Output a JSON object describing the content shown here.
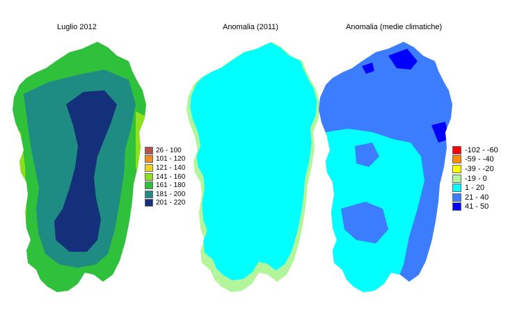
{
  "panels": [
    {
      "title": "Luglio 2012",
      "legend": [
        {
          "label": "26 - 100",
          "color": "#b9514a"
        },
        {
          "label": "101 - 120",
          "color": "#f28d22"
        },
        {
          "label": "121 - 140",
          "color": "#f0d21c"
        },
        {
          "label": "141 - 160",
          "color": "#8ee11a"
        },
        {
          "label": "161 - 180",
          "color": "#2fc03c"
        },
        {
          "label": "181 - 200",
          "color": "#1e8c82"
        },
        {
          "label": "201 - 220",
          "color": "#14307a"
        }
      ]
    },
    {
      "title": "Anomalia (2011)",
      "legend": []
    },
    {
      "title": "Anomalia (medie climatiche)",
      "legend": [
        {
          "label": "-102 - -60",
          "color": "#ff0000"
        },
        {
          "label": "-59 - -40",
          "color": "#ff8c00"
        },
        {
          "label": "-39 - -20",
          "color": "#ffff00"
        },
        {
          "label": "-19 - 0",
          "color": "#b3f59a"
        },
        {
          "label": "1 - 20",
          "color": "#00ffff"
        },
        {
          "label": "21 - 40",
          "color": "#3c7cff"
        },
        {
          "label": "41 - 50",
          "color": "#0000ff"
        }
      ]
    }
  ]
}
